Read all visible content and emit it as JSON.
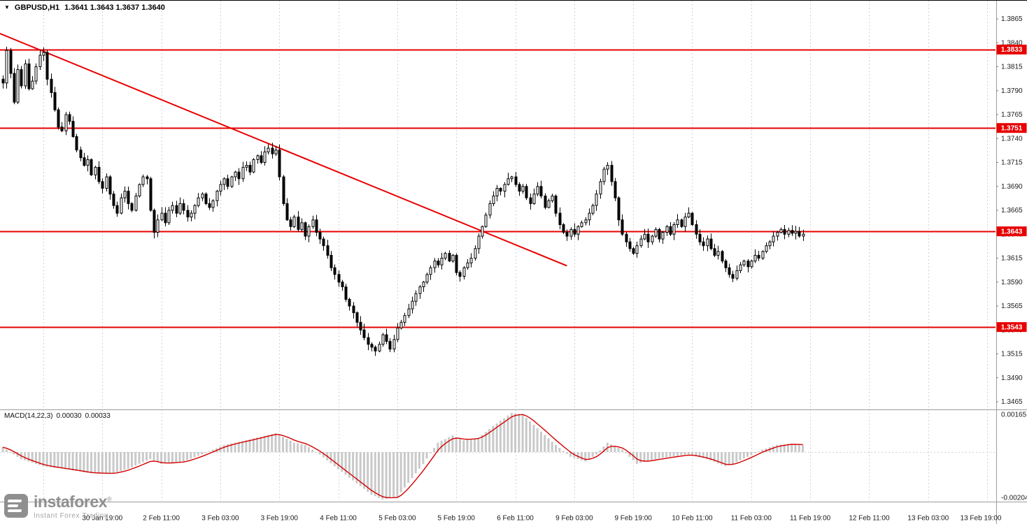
{
  "header": {
    "dropdown_icon": "▼",
    "symbol_timeframe": "GBPUSD,H1",
    "ohlc": "1.3641 1.3643 1.3637 1.3640"
  },
  "watermark": {
    "brand": "instaforex",
    "reg": "®",
    "tagline": "Instant Forex Trading"
  },
  "macd_panel": {
    "label": "MACD(14,22,3)",
    "value_main": "0.00030",
    "value_signal": "0.00033",
    "scale_max": "0.00165",
    "scale_min": "-0.00204"
  },
  "colors": {
    "bull": "#ffffff",
    "bear": "#000000",
    "outline": "#000000",
    "level_line": "#e80000",
    "trend_line": "#e80000",
    "grid": "#d2d2d2",
    "histogram": "#c9c9c9",
    "signal": "#d40000",
    "tag_bg": "#e80000",
    "tag_text": "#ffffff",
    "axis_text": "#1a1a1a",
    "separator": "#9c9c9c",
    "watermark_gray": "#8f8f8f"
  },
  "chart_data": {
    "type": "candlestick",
    "title": "GBPUSD,H1",
    "symbol": "GBPUSD",
    "timeframe": "H1",
    "current_quote": {
      "open": 1.3641,
      "high": 1.3643,
      "low": 1.3637,
      "close": 1.364
    },
    "y_axis": {
      "min": 1.3465,
      "max": 1.3865,
      "step": 0.0025,
      "ticks": [
        "1.3865",
        "1.3840",
        "1.3815",
        "1.3790",
        "1.3765",
        "1.3740",
        "1.3715",
        "1.3690",
        "1.3665",
        "1.3640",
        "1.3615",
        "1.3590",
        "1.3565",
        "1.3540",
        "1.3515",
        "1.3490",
        "1.3465"
      ]
    },
    "x_axis": {
      "labels": [
        "30 Jan 19:00",
        "2 Feb 11:00",
        "3 Feb 03:00",
        "3 Feb 19:00",
        "4 Feb 11:00",
        "5 Feb 03:00",
        "5 Feb 19:00",
        "6 Feb 11:00",
        "9 Feb 03:00",
        "9 Feb 19:00",
        "10 Feb 11:00",
        "11 Feb 03:00",
        "11 Feb 19:00",
        "12 Feb 11:00",
        "13 Feb 03:00",
        "13 Feb 19:00"
      ]
    },
    "bars_per_label": 16,
    "horizontal_levels": [
      {
        "price": 1.3833,
        "label": "1.3833"
      },
      {
        "price": 1.3751,
        "label": "1.3751"
      },
      {
        "price": 1.3643,
        "label": "1.3643"
      },
      {
        "price": 1.3543,
        "label": "1.3543"
      }
    ],
    "trendline": {
      "from": {
        "bar": -1,
        "price": 1.385
      },
      "to": {
        "bar": 153,
        "price": 1.3607
      }
    },
    "closes": [
      1.3798,
      1.3832,
      1.3808,
      1.3778,
      1.3812,
      1.3795,
      1.3818,
      1.3792,
      1.38,
      1.3815,
      1.3827,
      1.383,
      1.3802,
      1.3788,
      1.377,
      1.3752,
      1.3748,
      1.3765,
      1.3758,
      1.3742,
      1.3728,
      1.372,
      1.3712,
      1.3718,
      1.3702,
      1.371,
      1.3695,
      1.3688,
      1.37,
      1.3682,
      1.367,
      1.3662,
      1.3678,
      1.3685,
      1.3672,
      1.3665,
      1.368,
      1.3692,
      1.37,
      1.3698,
      1.3665,
      1.3642,
      1.3655,
      1.3662,
      1.3652,
      1.3665,
      1.367,
      1.3662,
      1.3672,
      1.3665,
      1.3658,
      1.3662,
      1.367,
      1.3678,
      1.3682,
      1.3672,
      1.3668,
      1.3675,
      1.3685,
      1.3692,
      1.3698,
      1.369,
      1.37,
      1.3705,
      1.3698,
      1.371,
      1.3712,
      1.3705,
      1.3718,
      1.3722,
      1.3715,
      1.3726,
      1.373,
      1.3724,
      1.3728,
      1.37,
      1.3672,
      1.3655,
      1.3648,
      1.3658,
      1.3645,
      1.3652,
      1.3638,
      1.3648,
      1.3655,
      1.3642,
      1.3635,
      1.3628,
      1.3618,
      1.3605,
      1.3598,
      1.359,
      1.3585,
      1.3572,
      1.3565,
      1.3558,
      1.3548,
      1.354,
      1.3532,
      1.3525,
      1.3522,
      1.3518,
      1.3525,
      1.3535,
      1.3528,
      1.352,
      1.353,
      1.3542,
      1.3548,
      1.3555,
      1.3562,
      1.357,
      1.3578,
      1.3585,
      1.359,
      1.3598,
      1.3605,
      1.3612,
      1.3608,
      1.3615,
      1.362,
      1.3612,
      1.3618,
      1.36,
      1.3596,
      1.3605,
      1.361,
      1.3615,
      1.3625,
      1.3638,
      1.3648,
      1.366,
      1.3672,
      1.368,
      1.3688,
      1.3685,
      1.3692,
      1.3698,
      1.37,
      1.3692,
      1.3685,
      1.369,
      1.3678,
      1.3672,
      1.3682,
      1.369,
      1.368,
      1.3668,
      1.3675,
      1.368,
      1.3662,
      1.365,
      1.3642,
      1.3638,
      1.3645,
      1.364,
      1.3648,
      1.3652,
      1.3655,
      1.3662,
      1.367,
      1.3682,
      1.3695,
      1.3708,
      1.3712,
      1.3695,
      1.3678,
      1.3655,
      1.364,
      1.3632,
      1.3625,
      1.362,
      1.3628,
      1.3635,
      1.364,
      1.3632,
      1.3638,
      1.3645,
      1.3635,
      1.3642,
      1.3648,
      1.364,
      1.365,
      1.3655,
      1.3648,
      1.3658,
      1.3662,
      1.365,
      1.364,
      1.3632,
      1.3628,
      1.3635,
      1.3625,
      1.3618,
      1.3622,
      1.3612,
      1.3605,
      1.3598,
      1.3594,
      1.3602,
      1.3608,
      1.3612,
      1.3606,
      1.3612,
      1.3618,
      1.3615,
      1.3622,
      1.3628,
      1.3632,
      1.3638,
      1.3642,
      1.3645,
      1.364,
      1.3644,
      1.3641,
      1.3643,
      1.3638,
      1.364
    ],
    "macd": {
      "label": "MACD(14,22,3)",
      "last_main": 0.0003,
      "last_signal": 0.00033,
      "scale_max": 0.00165,
      "scale_min": -0.00204,
      "path": [
        [
          0,
          0.0002
        ],
        [
          2,
          0.0
        ],
        [
          5,
          -0.0003
        ],
        [
          11,
          -0.0006
        ],
        [
          16,
          -0.0007
        ],
        [
          24,
          -0.0009
        ],
        [
          30,
          -0.0009
        ],
        [
          34,
          -0.0007
        ],
        [
          40,
          -0.0003
        ],
        [
          43,
          -0.0005
        ],
        [
          49,
          -0.0004
        ],
        [
          54,
          -0.0001
        ],
        [
          60,
          0.0003
        ],
        [
          66,
          0.0005
        ],
        [
          74,
          0.0008
        ],
        [
          79,
          0.0004
        ],
        [
          82,
          0.0003
        ],
        [
          86,
          -0.0001
        ],
        [
          90,
          -0.0006
        ],
        [
          95,
          -0.0012
        ],
        [
          100,
          -0.0018
        ],
        [
          103,
          -0.002
        ],
        [
          107,
          -0.0019
        ],
        [
          110,
          -0.0013
        ],
        [
          114,
          -0.0005
        ],
        [
          118,
          0.0004
        ],
        [
          122,
          0.0007
        ],
        [
          125,
          0.0005
        ],
        [
          129,
          0.0006
        ],
        [
          133,
          0.0011
        ],
        [
          138,
          0.00165
        ],
        [
          141,
          0.0016
        ],
        [
          145,
          0.001
        ],
        [
          150,
          0.0003
        ],
        [
          154,
          -0.0002
        ],
        [
          158,
          -0.0004
        ],
        [
          161,
          -0.0001
        ],
        [
          164,
          0.0004
        ],
        [
          168,
          0.0001
        ],
        [
          172,
          -0.0005
        ],
        [
          177,
          -0.0003
        ],
        [
          181,
          -0.0002
        ],
        [
          186,
          -0.0001
        ],
        [
          191,
          -0.0003
        ],
        [
          196,
          -0.0006
        ],
        [
          198,
          -0.0005
        ],
        [
          202,
          -0.0002
        ],
        [
          206,
          0.0001
        ],
        [
          210,
          0.0003
        ],
        [
          214,
          0.00035
        ],
        [
          217,
          0.0003
        ]
      ]
    }
  }
}
